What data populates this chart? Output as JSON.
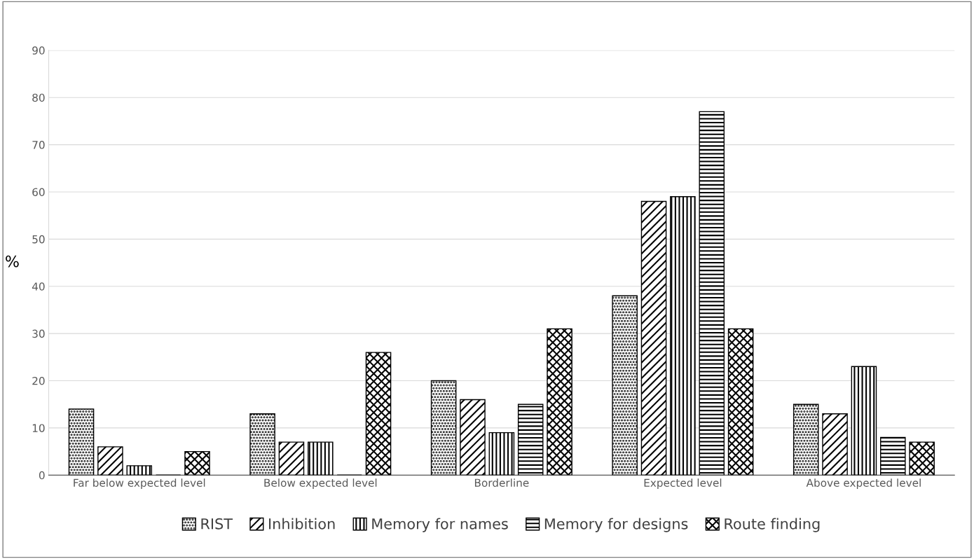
{
  "chart_data": {
    "type": "bar",
    "ylabel": "%",
    "categories": [
      "Far below expected level",
      "Below expected level",
      "Borderline",
      "Expected level",
      "Above expected level"
    ],
    "series": [
      {
        "name": "RIST",
        "color": "#000000",
        "values": [
          14,
          13,
          20,
          38,
          15
        ]
      },
      {
        "name": "Inhibition",
        "color": "#000000",
        "values": [
          6,
          7,
          16,
          58,
          13
        ]
      },
      {
        "name": "Memory for names",
        "color": "#000000",
        "values": [
          2,
          7,
          9,
          59,
          23
        ]
      },
      {
        "name": "Memory for designs",
        "color": "#000000",
        "values": [
          0,
          0,
          15,
          77,
          8
        ]
      },
      {
        "name": "Route finding",
        "color": "#000000",
        "values": [
          5,
          26,
          31,
          31,
          7
        ]
      }
    ],
    "ylim": [
      0,
      90
    ],
    "yticks": [
      0,
      10,
      20,
      30,
      40,
      50,
      60,
      70,
      80,
      90
    ],
    "grid": "y",
    "legend": "bottom"
  }
}
